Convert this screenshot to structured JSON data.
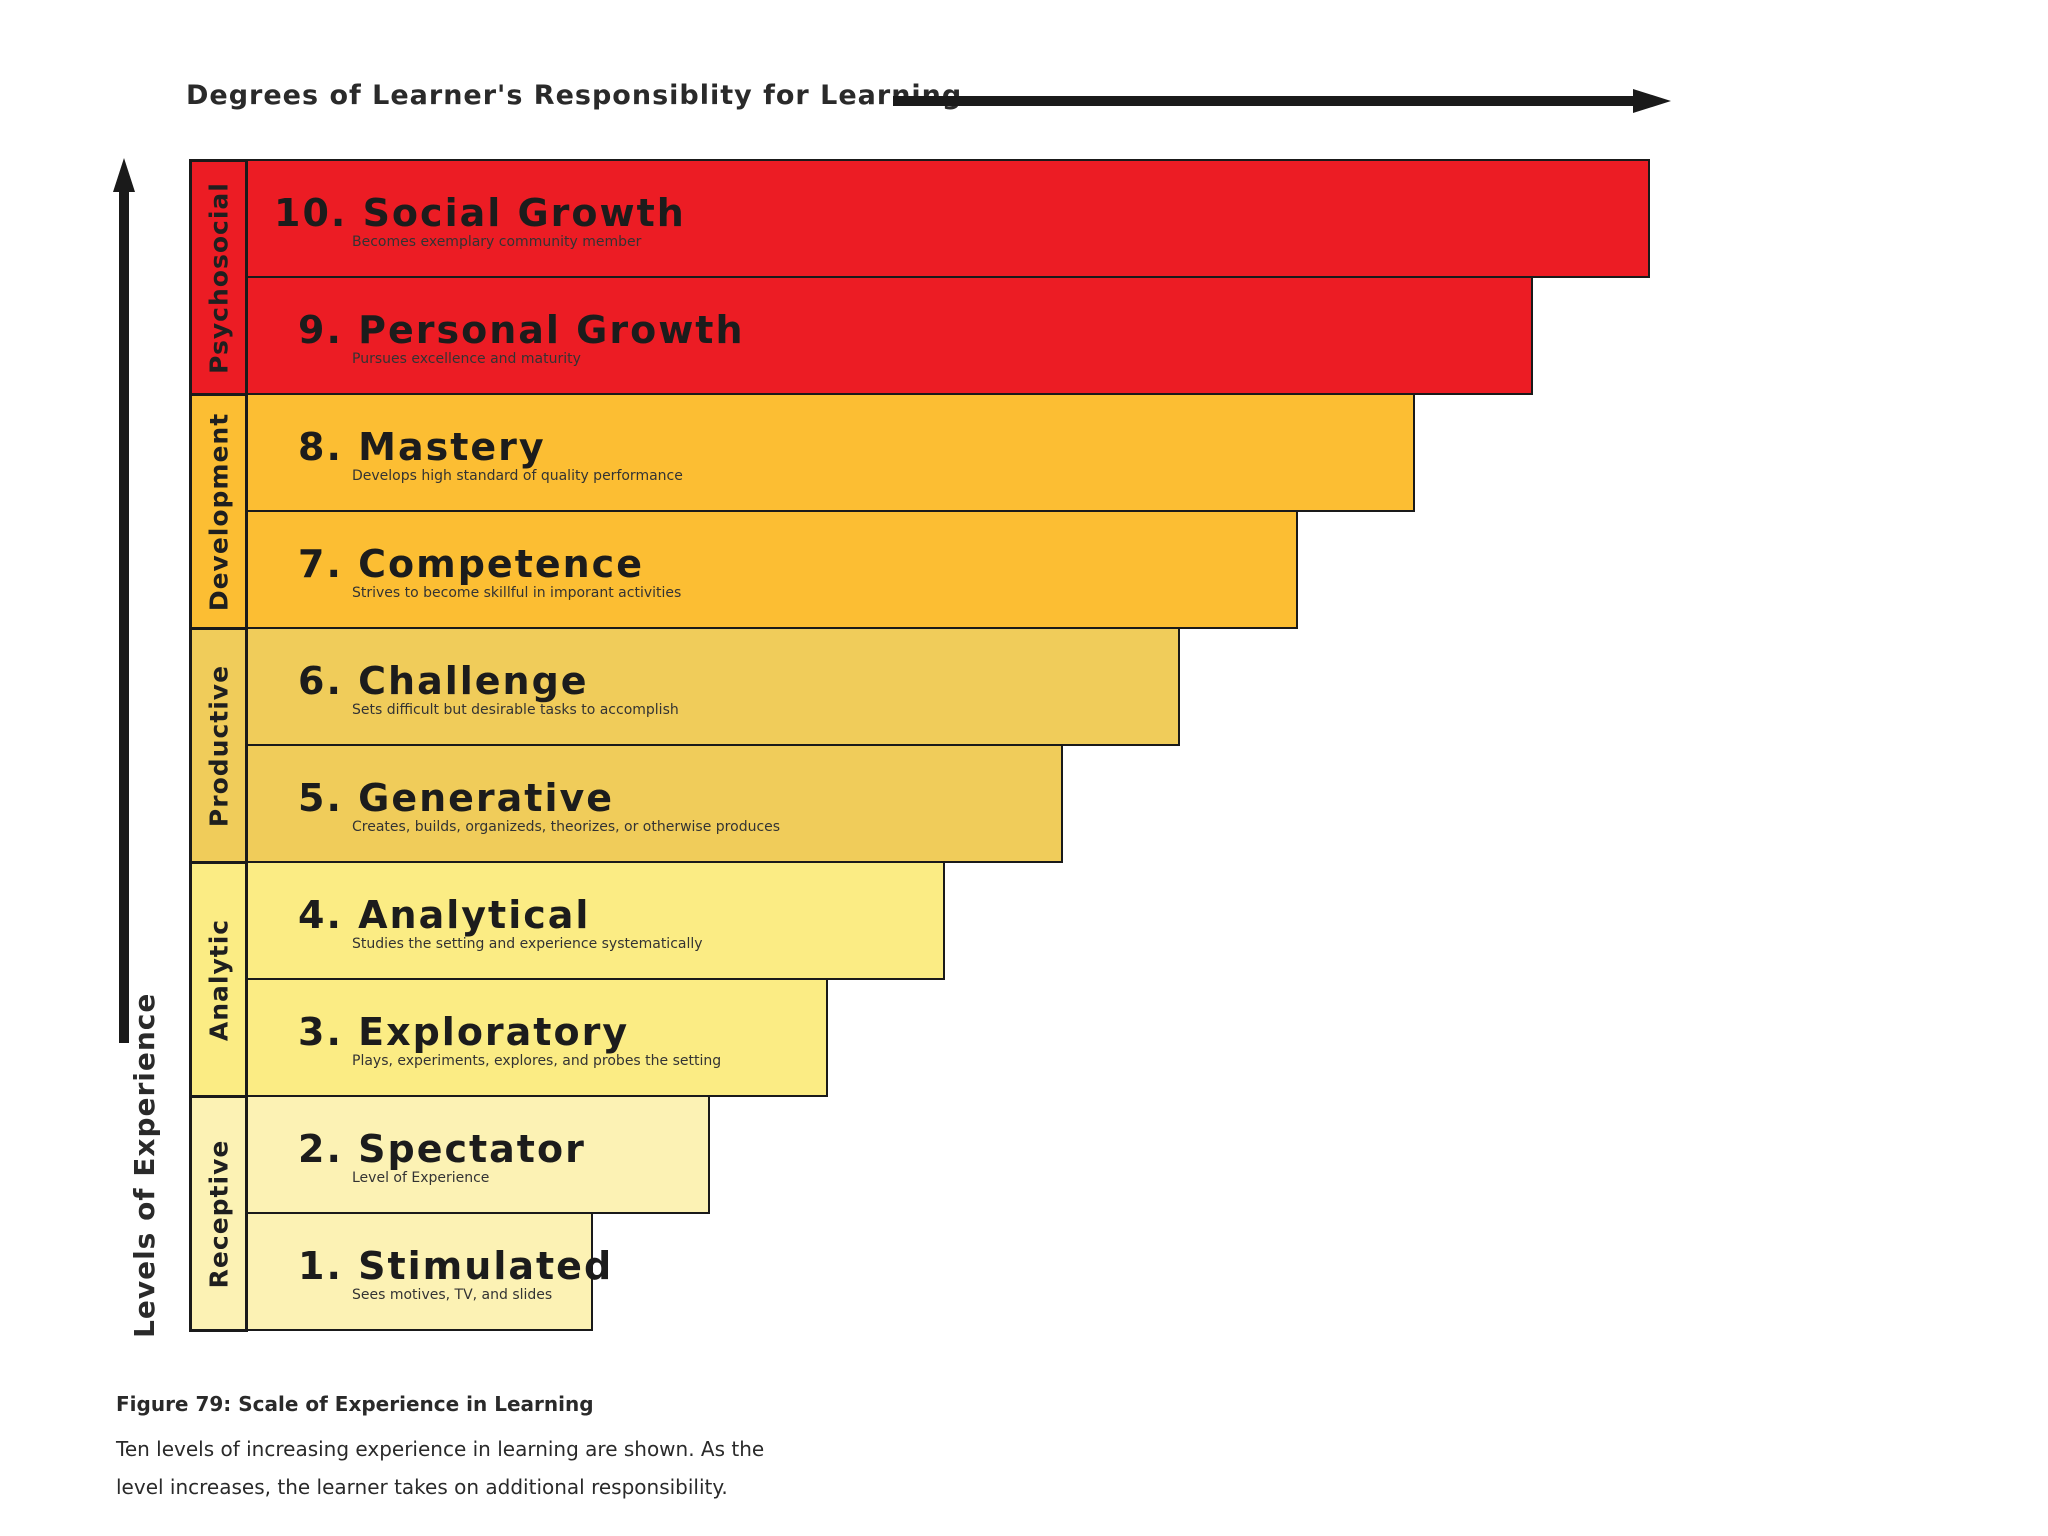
{
  "axes": {
    "top_label": "Degrees of Learner's Responsiblity for Learning",
    "left_label": "Levels of Experience"
  },
  "groups": [
    {
      "name": "Psychosocial",
      "color": "#ec1c24"
    },
    {
      "name": "Development",
      "color": "#fcbe33"
    },
    {
      "name": "Productive",
      "color": "#f0cc5a"
    },
    {
      "name": "Analytic",
      "color": "#fbec84"
    },
    {
      "name": "Receptive",
      "color": "#fcf2b4"
    }
  ],
  "levels": [
    {
      "number": "10.",
      "title": "Social Growth",
      "description": "Becomes exemplary community member",
      "color": "#ec1c24"
    },
    {
      "number": "9.",
      "title": "Personal Growth",
      "description": "Pursues excellence and maturity",
      "color": "#ec1c24"
    },
    {
      "number": "8.",
      "title": "Mastery",
      "description": "Develops high standard of quality performance",
      "color": "#fcbe33"
    },
    {
      "number": "7.",
      "title": "Competence",
      "description": "Strives to become skillful in imporant activities",
      "color": "#fcbe33"
    },
    {
      "number": "6.",
      "title": "Challenge",
      "description": "Sets difficult but desirable tasks to accomplish",
      "color": "#f0cc5a"
    },
    {
      "number": "5.",
      "title": "Generative",
      "description": "Creates, builds, organizeds, theorizes, or otherwise produces",
      "color": "#f0cc5a"
    },
    {
      "number": "4.",
      "title": "Analytical",
      "description": "Studies the setting and experience systematically",
      "color": "#fbec84"
    },
    {
      "number": "3.",
      "title": "Exploratory",
      "description": "Plays, experiments, explores, and probes the setting",
      "color": "#fbec84"
    },
    {
      "number": "2.",
      "title": "Spectator",
      "description": "Level of Experience",
      "color": "#fcf2b4"
    },
    {
      "number": "1.",
      "title": "Stimulated",
      "description": "Sees motives, TV, and slides",
      "color": "#fcf2b4"
    }
  ],
  "caption": {
    "title": "Figure 79:  Scale of Experience in Learning",
    "line1": "Ten levels of increasing experience in learning are shown. As the",
    "line2": "level increases, the learner takes on additional responsibility."
  }
}
